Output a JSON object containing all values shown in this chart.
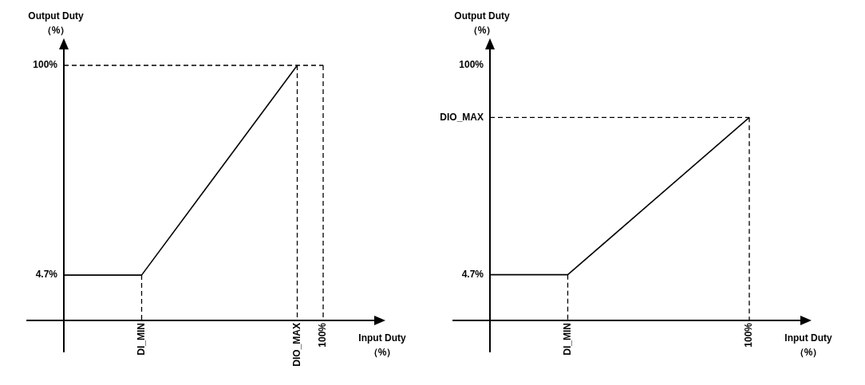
{
  "chart_data": [
    {
      "type": "line",
      "xlabel": "Input Duty\n（%）",
      "ylabel": "Output Duty\n（%）",
      "marker": "none",
      "categories": [
        null,
        null,
        null,
        "DI_MIN",
        null,
        null,
        null,
        null,
        null,
        "DIO_MAX",
        "100%"
      ],
      "ylim": [
        -15.9,
        100
      ],
      "yticks": [
        {
          "value": 4.7,
          "label": "4.7%"
        },
        {
          "value": 100,
          "label": "100%"
        }
      ],
      "series": [
        {
          "color": "#000000",
          "line_style": "solid",
          "values": [
            4.7,
            null,
            null,
            4.7,
            null,
            null,
            null,
            null,
            null,
            100,
            null
          ]
        },
        {
          "color": "#000000",
          "line_style": "dashed",
          "values": [
            100,
            null,
            null,
            null,
            null,
            null,
            null,
            null,
            null,
            null,
            100
          ]
        },
        {
          "color": "#000000",
          "line_style": "dashed",
          "x": [
            "100%",
            "100%"
          ],
          "values": [
            100,
            -15.9
          ]
        },
        {
          "color": "#000000",
          "line_style": "dashed",
          "x": [
            "DIO_MAX",
            "DIO_MAX"
          ],
          "values": [
            100,
            -15.9
          ]
        },
        {
          "color": "#000000",
          "line_style": "dashed",
          "x": [
            "DI_MIN",
            "DI_MIN"
          ],
          "values": [
            4.7,
            -15.9
          ]
        }
      ]
    },
    {
      "type": "line",
      "xlabel": "Input Duty\n（%）",
      "ylabel": "Output Duty\n（%）",
      "marker": "none",
      "categories": [
        null,
        null,
        null,
        "DI_MIN",
        null,
        null,
        null,
        null,
        null,
        null,
        "100%"
      ],
      "ylim": [
        -16.1,
        100
      ],
      "yticks": [
        {
          "value": 4.7,
          "label": "4.7%"
        },
        {
          "value": 76.3,
          "label": "DIO_MAX"
        },
        {
          "value": 100,
          "label": "100%"
        }
      ],
      "series": [
        {
          "color": "#000000",
          "line_style": "solid",
          "values": [
            4.7,
            null,
            null,
            4.7,
            null,
            null,
            null,
            null,
            null,
            null,
            76.3
          ]
        },
        {
          "color": "#000000",
          "line_style": "dashed",
          "values": [
            76.3,
            null,
            null,
            null,
            null,
            null,
            null,
            null,
            null,
            null,
            76.3
          ]
        },
        {
          "color": "#000000",
          "line_style": "dashed",
          "x": [
            "100%",
            "100%"
          ],
          "values": [
            76.3,
            -16.1
          ]
        },
        {
          "color": "#000000",
          "line_style": "dashed",
          "x": [
            "DI_MIN",
            "DI_MIN"
          ],
          "values": [
            4.7,
            -16.1
          ]
        }
      ]
    }
  ]
}
